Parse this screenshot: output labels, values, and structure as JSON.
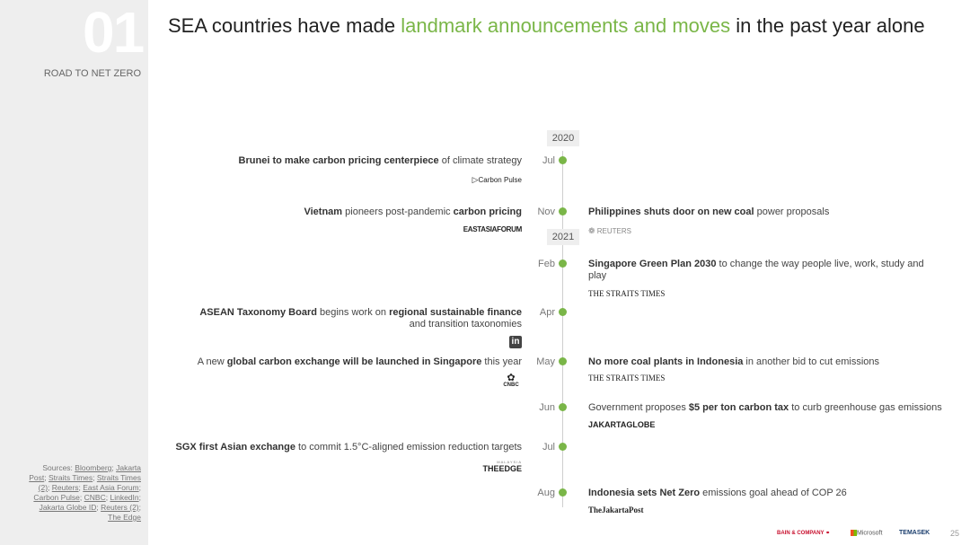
{
  "sidebar": {
    "section_number": "01",
    "section_label": "ROAD TO NET ZERO",
    "sources_label": "Sources:",
    "sources": [
      {
        "text": "Bloomberg",
        "after": "; "
      },
      {
        "text": "Jakarta Post",
        "after": "; "
      },
      {
        "text": "Straits Times",
        "after": "; "
      },
      {
        "text": "Straits Times (2)",
        "after": "; "
      },
      {
        "text": "Reuters",
        "after": "; "
      },
      {
        "text": "East Asia Forum",
        "after": "; "
      },
      {
        "text": "Carbon Pulse",
        "after": "; "
      },
      {
        "text": "CNBC",
        "after": "; "
      },
      {
        "text": "LinkedIn",
        "after": "; "
      },
      {
        "text": "Jakarta Globe ID",
        "after": "; "
      },
      {
        "text": "Reuters (2)",
        "after": "; "
      },
      {
        "text": "The Edge",
        "after": ""
      }
    ]
  },
  "title": {
    "pre": "SEA countries have made ",
    "accent": "landmark announcements and moves",
    "post": " in the past year alone",
    "accent_color": "#7ab648"
  },
  "timeline": {
    "years": [
      "2020",
      "2021"
    ],
    "months": {
      "jul2020": "Jul",
      "nov": "Nov",
      "feb": "Feb",
      "apr": "Apr",
      "may": "May",
      "jun": "Jun",
      "jul2021": "Jul",
      "aug": "Aug"
    },
    "dot_color": "#7ab648",
    "events": {
      "brunei": {
        "bold": "Brunei to make carbon pricing centerpiece",
        "rest": " of climate strategy",
        "source": "Carbon Pulse"
      },
      "vietnam": {
        "bold1": "Vietnam",
        "mid": " pioneers post-pandemic ",
        "bold2": "carbon pricing",
        "source": "EASTASIAFORUM"
      },
      "philippines": {
        "bold": "Philippines shuts door on new coal",
        "rest": " power proposals",
        "source": "REUTERS"
      },
      "singapore_green": {
        "bold": "Singapore Green Plan 2030",
        "rest": " to change the way people live, work, study and play",
        "source": "THE STRAITS TIMES"
      },
      "asean": {
        "bold1": "ASEAN Taxonomy Board",
        "mid": " begins work on ",
        "bold2": "regional sustainable finance",
        "rest": " and transition taxonomies",
        "source": "in"
      },
      "carbon_exchange": {
        "pre": "A new ",
        "bold": "global carbon exchange will be launched in Singapore",
        "rest": " this year",
        "source": "CNBC"
      },
      "indonesia_coal": {
        "bold": "No more coal plants in Indonesia",
        "rest": " in another bid to cut emissions",
        "source": "THE STRAITS TIMES"
      },
      "carbon_tax": {
        "pre": "Government proposes ",
        "bold": "$5 per ton carbon tax",
        "rest": " to curb greenhouse gas emissions",
        "source": "JAKARTAGLOBE"
      },
      "sgx": {
        "bold": "SGX first Asian exchange",
        "rest": " to commit 1.5°C-aligned emission reduction targets",
        "source_top": "MALAYSIA",
        "source": "THEEDGE"
      },
      "indonesia_netzero": {
        "bold": "Indonesia sets Net Zero",
        "rest": " emissions goal ahead of COP 26",
        "source": "TheJakartaPost"
      }
    }
  },
  "footer": {
    "bain": "BAIN & COMPANY",
    "microsoft": "Microsoft",
    "temasek": "TEMASEK",
    "page_number": "25"
  }
}
